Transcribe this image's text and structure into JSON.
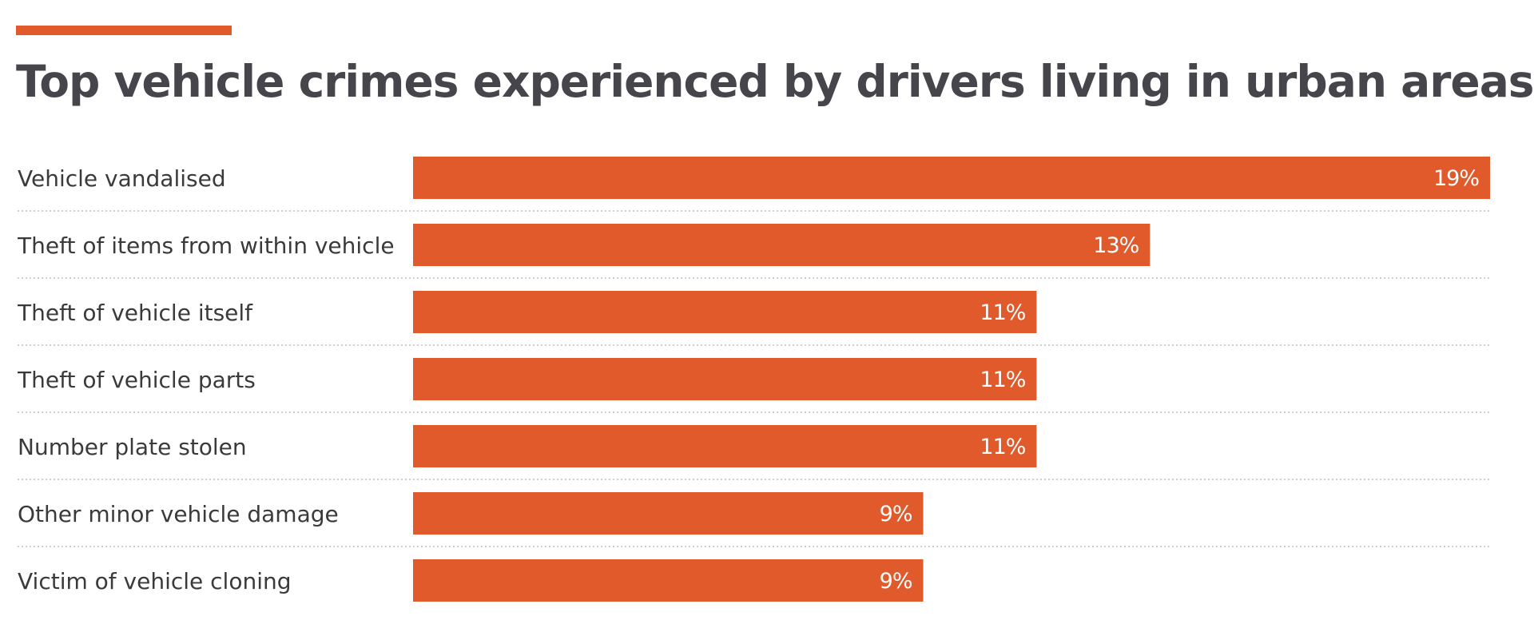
{
  "chart_data": {
    "type": "bar",
    "orientation": "horizontal",
    "title": "Top vehicle crimes experienced by drivers living in urban areas",
    "categories": [
      "Vehicle vandalised",
      "Theft of items from within vehicle",
      "Theft of vehicle itself",
      "Theft of vehicle parts",
      "Number plate stolen",
      "Other minor vehicle damage",
      "Victim of vehicle cloning"
    ],
    "values": [
      19,
      13,
      11,
      11,
      11,
      9,
      9
    ],
    "value_labels": [
      "19%",
      "13%",
      "11%",
      "11%",
      "11%",
      "9%",
      "9%"
    ],
    "xlabel": "",
    "ylabel": "",
    "xlim": [
      0,
      19
    ],
    "grid": false,
    "legend": "none"
  },
  "colors": {
    "bar": "#e05a2b",
    "accent": "#e05a2b",
    "title": "#45454b"
  }
}
